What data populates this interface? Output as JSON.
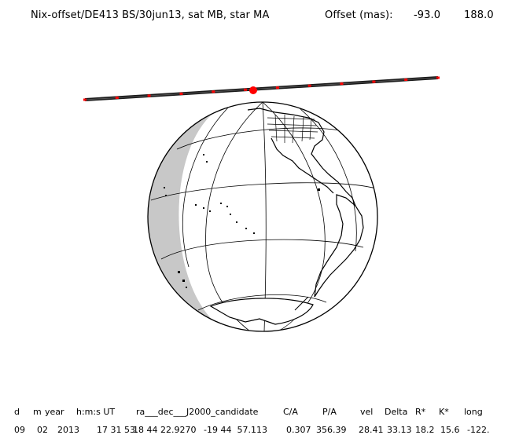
{
  "header": {
    "title": "Nix-offset/DE413 BS/30jun13, sat MB, star MA",
    "offset_label": "Offset (mas):",
    "offset_x": "-93.0",
    "offset_y": "188.0"
  },
  "table": {
    "columns": [
      "d",
      "m",
      "year",
      "h:m:s UT",
      "ra___dec___J2000_candidate",
      "C/A",
      "P/A",
      "vel",
      "Delta",
      "R*",
      "K*",
      "long"
    ],
    "row": [
      "09",
      "02",
      "2013",
      "17 31 53.",
      "18 44 22.9270",
      "-19 44  57.113",
      "0.307",
      "356.39",
      "28.41",
      "33.13",
      "18.2",
      "15.6",
      "-122."
    ]
  },
  "colors": {
    "track": "#1a1a1a",
    "track_markers": "#ff0000",
    "night_side": "#c8c8c8",
    "outline": "#000000"
  },
  "icons": [
    "earth-globe",
    "occultation-track",
    "closest-approach-marker"
  ]
}
